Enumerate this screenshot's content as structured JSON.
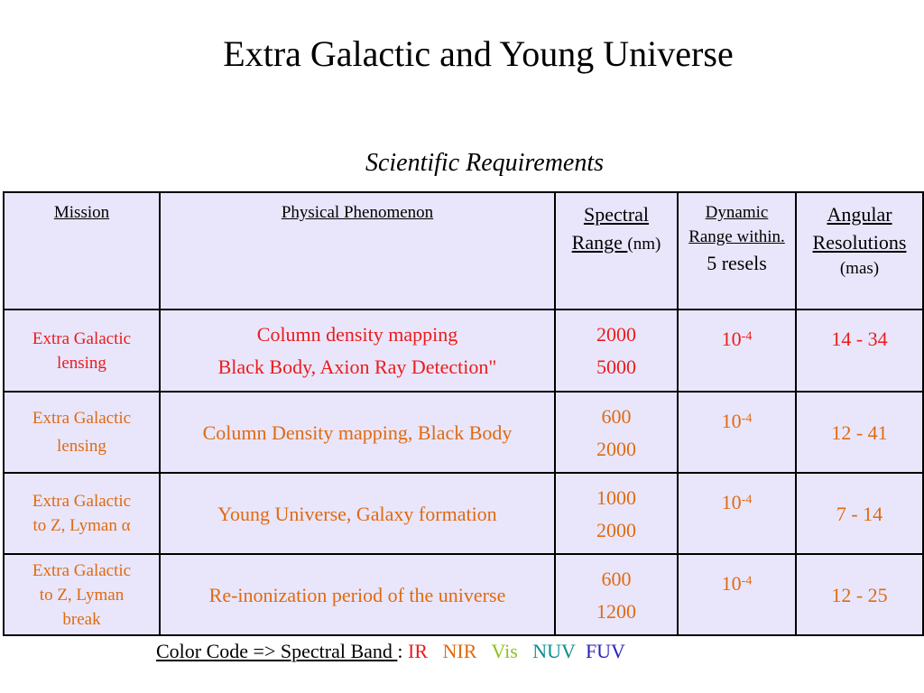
{
  "title": "Extra Galactic and  Young Universe",
  "subtitle": "Scientific Requirements",
  "table": {
    "headers": {
      "mission": "Mission",
      "phenomenon": "Physical Phenomenon",
      "spectral_main": "Spectral Range ",
      "spectral_unit": "(nm)",
      "dynamic_main": "Dynamic Range within.",
      "dynamic_sub": "5 resels",
      "angular_main": "Angular Resolutions",
      "angular_unit": "(mas)"
    },
    "rows": [
      {
        "mission": [
          "Extra Galactic",
          "lensing"
        ],
        "phenomenon": [
          "Column density  mapping",
          "Black Body, Axion Ray Detection\""
        ],
        "spectral": [
          "2000",
          "5000"
        ],
        "dynamic_base": "10",
        "dynamic_exp": "-4",
        "angular": "14 - 34",
        "color": "#ea1c1c"
      },
      {
        "mission": [
          "Extra Galactic",
          "lensing"
        ],
        "phenomenon": [
          "Column Density mapping, Black Body"
        ],
        "spectral": [
          "600",
          "2000"
        ],
        "dynamic_base": "10",
        "dynamic_exp": "-4",
        "angular": "12 - 41",
        "color": "#e06a10"
      },
      {
        "mission": [
          "Extra Galactic",
          "to Z, Lyman α"
        ],
        "phenomenon": [
          "Young Universe, Galaxy formation"
        ],
        "spectral": [
          "1000",
          "2000"
        ],
        "dynamic_base": "10",
        "dynamic_exp": "-4",
        "angular": "7 -  14",
        "color": "#e06a10"
      },
      {
        "mission": [
          "Extra Galactic",
          "to  Z, Lyman",
          "break"
        ],
        "phenomenon": [
          "Re-inonization period  of the  universe"
        ],
        "spectral": [
          "600",
          "1200"
        ],
        "dynamic_base": "10",
        "dynamic_exp": "-4",
        "angular": "12 - 25",
        "color": "#e06a10"
      }
    ]
  },
  "legend": {
    "label": "Color Code => Spectral Band ",
    "separator": ":",
    "bands": [
      {
        "name": "IR",
        "color": "#ea1c1c"
      },
      {
        "name": "NIR",
        "color": "#e06a10"
      },
      {
        "name": "Vis",
        "color": "#8fc21b"
      },
      {
        "name": "NUV",
        "color": "#0b8f8f"
      },
      {
        "name": "FUV",
        "color": "#2a24b8"
      }
    ]
  }
}
